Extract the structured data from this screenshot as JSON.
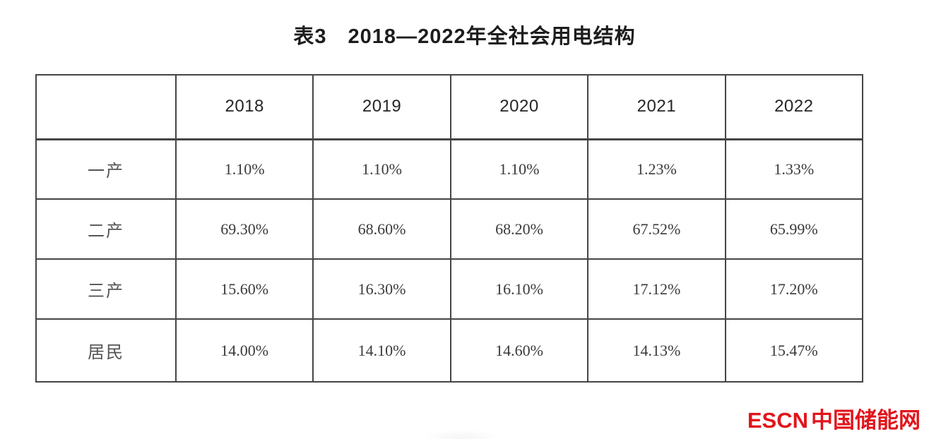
{
  "page": {
    "title": "表3　2018—2022年全社会用电结构"
  },
  "table": {
    "corner": "",
    "columns": [
      "2018",
      "2019",
      "2020",
      "2021",
      "2022"
    ],
    "rows": [
      {
        "label": "一产",
        "values": [
          "1.10%",
          "1.10%",
          "1.10%",
          "1.23%",
          "1.33%"
        ]
      },
      {
        "label": "二产",
        "values": [
          "69.30%",
          "68.60%",
          "68.20%",
          "67.52%",
          "65.99%"
        ]
      },
      {
        "label": "三产",
        "values": [
          "15.60%",
          "16.30%",
          "16.10%",
          "17.12%",
          "17.20%"
        ]
      },
      {
        "label": "居民",
        "values": [
          "14.00%",
          "14.10%",
          "14.60%",
          "14.13%",
          "15.47%"
        ]
      }
    ],
    "border_color": "#454545"
  },
  "footer": {
    "logo_en": "ESCN",
    "logo_cn": "中国储能网",
    "logo_color": "#e1151c"
  },
  "chart_data": {
    "type": "table",
    "title": "表3　2018—2022年全社会用电结构",
    "categories": [
      "2018",
      "2019",
      "2020",
      "2021",
      "2022"
    ],
    "series": [
      {
        "name": "一产",
        "values": [
          1.1,
          1.1,
          1.1,
          1.23,
          1.33
        ]
      },
      {
        "name": "二产",
        "values": [
          69.3,
          68.6,
          68.2,
          67.52,
          65.99
        ]
      },
      {
        "name": "三产",
        "values": [
          15.6,
          16.3,
          16.1,
          17.12,
          17.2
        ]
      },
      {
        "name": "居民",
        "values": [
          14.0,
          14.1,
          14.6,
          14.13,
          15.47
        ]
      }
    ],
    "unit": "%",
    "source_logo": "ESCN中国储能网"
  }
}
